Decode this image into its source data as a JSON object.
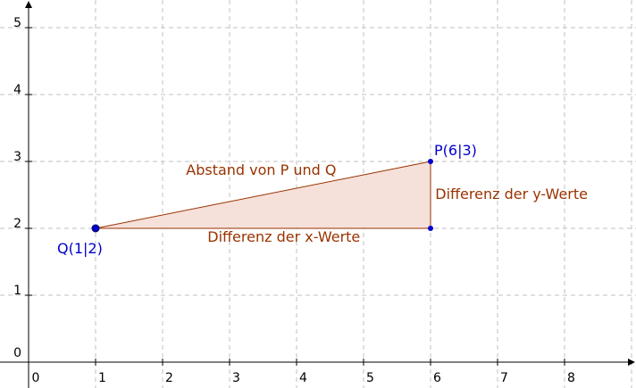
{
  "figure": {
    "x_axis": {
      "min": -0.1,
      "max": 9.3,
      "tick_labels": [
        "0",
        "1",
        "2",
        "3",
        "4",
        "5",
        "6",
        "7",
        "8"
      ]
    },
    "y_axis": {
      "min": -0.1,
      "max": 5.3,
      "tick_labels": [
        "0",
        "1",
        "2",
        "3",
        "4",
        "5"
      ]
    },
    "grid": true,
    "colors": {
      "points": "#0000cc",
      "point_stroke": "#000066",
      "triangle_edge": "#993300",
      "triangle_fill": "#f5e0da",
      "vertex": "#0000cc",
      "grid": "#c0c0c0",
      "axis": "#000000"
    },
    "points": [
      {
        "id": "Q",
        "x": 1,
        "y": 2,
        "label": "Q(1|2)"
      },
      {
        "id": "P",
        "x": 6,
        "y": 3,
        "label": "P(6|3)"
      }
    ],
    "triangle": {
      "vertices": [
        {
          "x": 1,
          "y": 2
        },
        {
          "x": 6,
          "y": 3
        },
        {
          "x": 6,
          "y": 2
        }
      ]
    },
    "segment_labels": {
      "hypotenuse": "Abstand von P und Q",
      "horizontal": "Differenz der x-Werte",
      "vertical": "Differenz der y-Werte"
    }
  }
}
